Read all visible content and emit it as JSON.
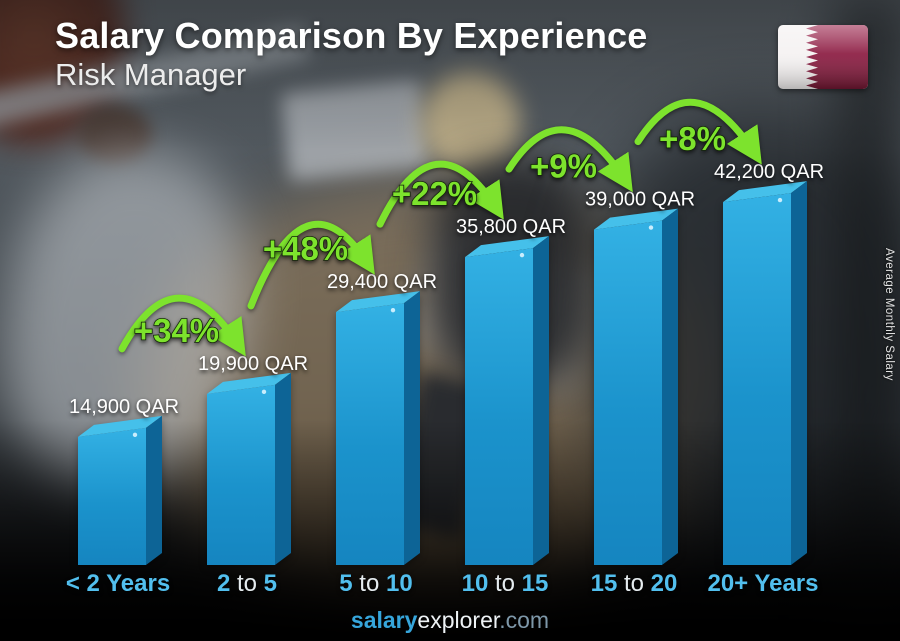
{
  "header": {
    "title": "Salary Comparison By Experience",
    "subtitle": "Risk Manager"
  },
  "flag": {
    "name": "qatar-flag",
    "maroon": "#8c1f44",
    "maroon_light": "#a53a5e",
    "white": "#f5f2f2"
  },
  "chart_data": {
    "type": "bar",
    "title": "Salary Comparison By Experience",
    "subtitle": "Risk Manager",
    "unit": "QAR",
    "categories": [
      "< 2 Years",
      "2 to 5",
      "5 to 10",
      "10 to 15",
      "15 to 20",
      "20+ Years"
    ],
    "values": [
      14900,
      19900,
      29400,
      35800,
      39000,
      42200
    ],
    "value_labels": [
      "14,900 QAR",
      "19,900 QAR",
      "29,400 QAR",
      "35,800 QAR",
      "39,000 QAR",
      "42,200 QAR"
    ],
    "pct_changes": [
      "+34%",
      "+48%",
      "+22%",
      "+9%",
      "+8%"
    ],
    "xlabel": "",
    "ylabel": "Average Monthly Salary",
    "ylim": [
      0,
      45000
    ],
    "grid": false,
    "legend": "none",
    "colors": {
      "bar_front_top": "#33b1e4",
      "bar_front_bottom": "#1585c0",
      "bar_top_face": "#45c0ea",
      "bar_side_face": "#0d6496",
      "growth_green": "#7de32d",
      "category_accent": "#52bfee",
      "value_text": "#ffffff"
    },
    "category_segments": [
      [
        {
          "t": "< 2 Years",
          "s": "num"
        }
      ],
      [
        {
          "t": "2",
          "s": "num"
        },
        {
          "t": " to ",
          "s": "word"
        },
        {
          "t": "5",
          "s": "num"
        }
      ],
      [
        {
          "t": "5",
          "s": "num"
        },
        {
          "t": " to ",
          "s": "word"
        },
        {
          "t": "10",
          "s": "num"
        }
      ],
      [
        {
          "t": "10",
          "s": "num"
        },
        {
          "t": " to ",
          "s": "word"
        },
        {
          "t": "15",
          "s": "num"
        }
      ],
      [
        {
          "t": "15",
          "s": "num"
        },
        {
          "t": " to ",
          "s": "word"
        },
        {
          "t": "20",
          "s": "num"
        }
      ],
      [
        {
          "t": "20+ Years",
          "s": "num"
        }
      ]
    ]
  },
  "footer": {
    "segments": [
      {
        "t": "salary",
        "s": "cyan"
      },
      {
        "t": "explorer",
        "s": "white"
      },
      {
        "t": ".com",
        "s": "gray"
      }
    ]
  }
}
